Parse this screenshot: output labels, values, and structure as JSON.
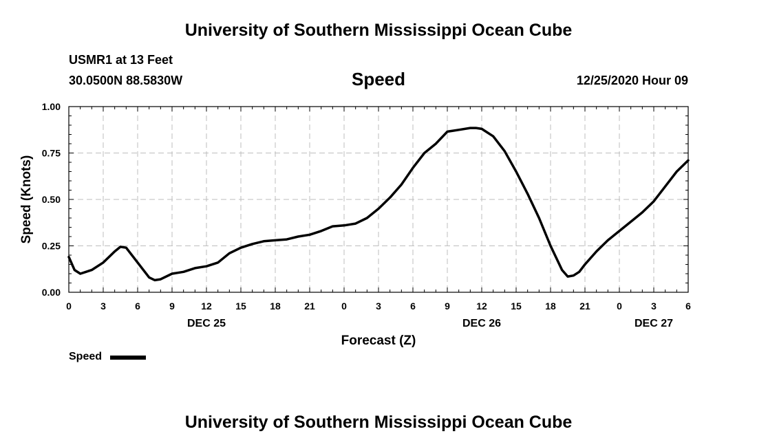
{
  "header": {
    "title": "University of Southern Mississippi Ocean Cube",
    "station": "USMR1 at 13 Feet",
    "coords": "30.0500N 88.5830W",
    "variable": "Speed",
    "datetime": "12/25/2020 Hour 09"
  },
  "footer": {
    "title": "University of Southern Mississippi Ocean Cube"
  },
  "legend": {
    "label": "Speed"
  },
  "chart_data": {
    "type": "line",
    "title": "Speed",
    "xlabel": "Forecast (Z)",
    "ylabel": "Speed (Knots)",
    "x_unit": "forecast hours from DEC 25 00Z",
    "xlim": [
      0,
      54
    ],
    "ylim": [
      0,
      1
    ],
    "grid": true,
    "legend_position": "bottom-left",
    "xticks": [
      0,
      3,
      6,
      9,
      12,
      15,
      18,
      21,
      24,
      27,
      30,
      33,
      36,
      39,
      42,
      45,
      48,
      51,
      54
    ],
    "xtick_labels": [
      "0",
      "3",
      "6",
      "9",
      "12",
      "15",
      "18",
      "21",
      "0",
      "3",
      "6",
      "9",
      "12",
      "15",
      "18",
      "21",
      "0",
      "3",
      "6"
    ],
    "yticks": [
      0,
      0.25,
      0.5,
      0.75,
      1.0
    ],
    "ytick_labels": [
      "0.00",
      "0.25",
      "0.50",
      "0.75",
      "1.00"
    ],
    "day_labels": [
      {
        "label": "DEC 25",
        "x": 12
      },
      {
        "label": "DEC 26",
        "x": 36
      },
      {
        "label": "DEC 27",
        "x": 51
      }
    ],
    "series": [
      {
        "name": "Speed",
        "color": "#000000",
        "x": [
          0,
          0.5,
          1,
          1.5,
          2,
          3,
          4,
          4.5,
          5,
          6,
          7,
          7.5,
          8,
          9,
          10,
          11,
          12,
          13,
          14,
          15,
          16,
          17,
          18,
          19,
          20,
          21,
          22,
          23,
          24,
          25,
          26,
          27,
          28,
          29,
          30,
          31,
          32,
          33,
          33.5,
          34,
          35,
          35.5,
          36,
          37,
          38,
          39,
          40,
          41,
          42,
          43,
          43.5,
          44,
          44.5,
          45,
          46,
          47,
          48,
          49,
          50,
          51,
          52,
          53,
          54
        ],
        "y": [
          0.19,
          0.12,
          0.1,
          0.11,
          0.12,
          0.16,
          0.22,
          0.245,
          0.24,
          0.16,
          0.08,
          0.065,
          0.07,
          0.1,
          0.11,
          0.13,
          0.14,
          0.16,
          0.21,
          0.24,
          0.26,
          0.275,
          0.28,
          0.285,
          0.3,
          0.31,
          0.33,
          0.355,
          0.36,
          0.37,
          0.4,
          0.45,
          0.51,
          0.58,
          0.67,
          0.75,
          0.8,
          0.865,
          0.87,
          0.875,
          0.885,
          0.885,
          0.88,
          0.84,
          0.76,
          0.65,
          0.53,
          0.4,
          0.25,
          0.12,
          0.085,
          0.09,
          0.11,
          0.15,
          0.22,
          0.28,
          0.33,
          0.38,
          0.43,
          0.49,
          0.57,
          0.65,
          0.71
        ]
      }
    ]
  }
}
